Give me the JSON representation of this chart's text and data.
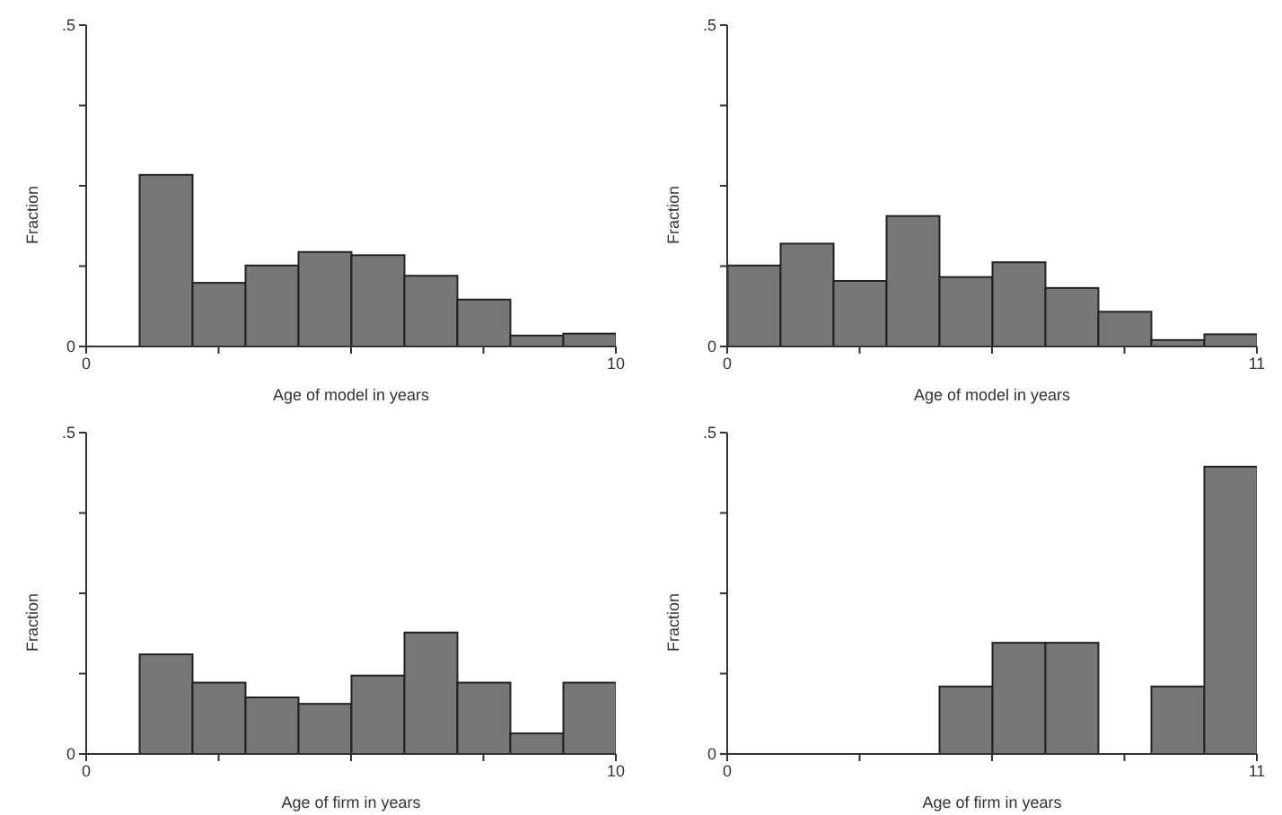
{
  "chart_data": [
    {
      "type": "histogram",
      "xlabel": "Age of model in years",
      "ylabel": "Fraction",
      "color": "#777777",
      "bins": [
        1,
        2,
        3,
        4,
        5,
        6,
        7,
        8,
        9,
        10
      ],
      "values": [
        0.267,
        0.099,
        0.126,
        0.147,
        0.142,
        0.11,
        0.073,
        0.017,
        0.02
      ],
      "xlim": [
        0,
        10
      ],
      "xticks": [
        0,
        {
          "value": 2.5,
          "label": null
        },
        {
          "value": 5,
          "label": null
        },
        {
          "value": 7.5,
          "label": null
        },
        10
      ],
      "ylim": [
        0,
        0.5
      ],
      "yticks": [
        {
          "value": 0,
          "label": "0"
        },
        {
          "value": 0.125,
          "label": null
        },
        {
          "value": 0.25,
          "label": null
        },
        {
          "value": 0.375,
          "label": null
        },
        {
          "value": 0.5,
          "label": ".5"
        }
      ]
    },
    {
      "type": "histogram",
      "xlabel": "Age of model in years",
      "ylabel": "Fraction",
      "color": "#777777",
      "bins": [
        0,
        1.1,
        2.2,
        3.3,
        4.4,
        5.5,
        6.6,
        7.7,
        8.8,
        9.9,
        11
      ],
      "values": [
        0.126,
        0.16,
        0.102,
        0.203,
        0.108,
        0.131,
        0.091,
        0.054,
        0.01,
        0.019
      ],
      "xlim": [
        0,
        11
      ],
      "xticks": [
        0,
        {
          "value": 2.75,
          "label": null
        },
        {
          "value": 5.5,
          "label": null
        },
        {
          "value": 8.25,
          "label": null
        },
        11
      ],
      "ylim": [
        0,
        0.5
      ],
      "yticks": [
        {
          "value": 0,
          "label": "0"
        },
        {
          "value": 0.125,
          "label": null
        },
        {
          "value": 0.25,
          "label": null
        },
        {
          "value": 0.375,
          "label": null
        },
        {
          "value": 0.5,
          "label": ".5"
        }
      ]
    },
    {
      "type": "histogram",
      "xlabel": "Age of firm in years",
      "ylabel": "Fraction",
      "color": "#777777",
      "bins": [
        1,
        2,
        3,
        4,
        5,
        6,
        7,
        8,
        9,
        10
      ],
      "values": [
        0.155,
        0.111,
        0.088,
        0.078,
        0.122,
        0.189,
        0.111,
        0.032,
        0.111
      ],
      "xlim": [
        0,
        10
      ],
      "xticks": [
        0,
        {
          "value": 2.5,
          "label": null
        },
        {
          "value": 5,
          "label": null
        },
        {
          "value": 7.5,
          "label": null
        },
        10
      ],
      "ylim": [
        0,
        0.5
      ],
      "yticks": [
        {
          "value": 0,
          "label": "0"
        },
        {
          "value": 0.125,
          "label": null
        },
        {
          "value": 0.25,
          "label": null
        },
        {
          "value": 0.375,
          "label": null
        },
        {
          "value": 0.5,
          "label": ".5"
        }
      ]
    },
    {
      "type": "histogram",
      "xlabel": "Age of firm in years",
      "ylabel": "Fraction",
      "color": "#777777",
      "bins": [
        0,
        1.1,
        2.2,
        3.3,
        4.4,
        5.5,
        6.6,
        7.7,
        8.8,
        9.9,
        11
      ],
      "values": [
        0,
        0,
        0,
        0,
        0.105,
        0.173,
        0.173,
        0,
        0.105,
        0.447
      ],
      "xlim": [
        0,
        11
      ],
      "xticks": [
        0,
        {
          "value": 2.75,
          "label": null
        },
        {
          "value": 5.5,
          "label": null
        },
        {
          "value": 8.25,
          "label": null
        },
        11
      ],
      "ylim": [
        0,
        0.5
      ],
      "yticks": [
        {
          "value": 0,
          "label": "0"
        },
        {
          "value": 0.125,
          "label": null
        },
        {
          "value": 0.25,
          "label": null
        },
        {
          "value": 0.375,
          "label": null
        },
        {
          "value": 0.5,
          "label": ".5"
        }
      ]
    }
  ]
}
